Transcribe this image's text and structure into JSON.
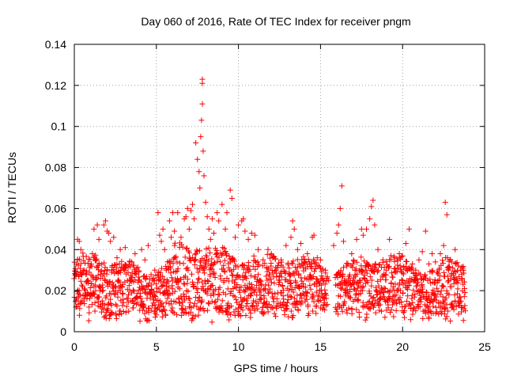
{
  "chart_data": {
    "type": "scatter",
    "title": "Day 060 of 2016, Rate Of TEC Index for receiver pngm",
    "xlabel": "GPS time / hours",
    "ylabel": "ROTI / TECUs",
    "xlim": [
      0,
      25
    ],
    "ylim": [
      0,
      0.14
    ],
    "x_ticks": [
      0,
      5,
      10,
      15,
      20,
      25
    ],
    "x_tick_labels": [
      "0",
      "5",
      "10",
      "15",
      "20",
      "25"
    ],
    "y_ticks": [
      0,
      0.02,
      0.04,
      0.06,
      0.08,
      0.1,
      0.12,
      0.14
    ],
    "y_tick_labels": [
      "0",
      "0.02",
      "0.04",
      "0.06",
      "0.08",
      "0.1",
      "0.12",
      "0.14"
    ],
    "grid": true,
    "marker": "+",
    "color": "#ff0000",
    "series": [
      {
        "name": "ROTI",
        "points": [
          [
            0.1,
            0.012
          ],
          [
            0.1,
            0.028
          ],
          [
            0.2,
            0.035
          ],
          [
            0.2,
            0.045
          ],
          [
            0.3,
            0.02
          ],
          [
            0.3,
            0.044
          ],
          [
            0.4,
            0.015
          ],
          [
            0.4,
            0.04
          ],
          [
            0.5,
            0.022
          ],
          [
            0.6,
            0.03
          ],
          [
            0.7,
            0.018
          ],
          [
            0.8,
            0.025
          ],
          [
            0.9,
            0.012
          ],
          [
            1.0,
            0.032
          ],
          [
            1.1,
            0.038
          ],
          [
            1.2,
            0.05
          ],
          [
            1.3,
            0.02
          ],
          [
            1.4,
            0.052
          ],
          [
            1.5,
            0.045
          ],
          [
            1.6,
            0.028
          ],
          [
            1.7,
            0.015
          ],
          [
            1.8,
            0.052
          ],
          [
            1.9,
            0.054
          ],
          [
            2.0,
            0.049
          ],
          [
            2.1,
            0.048
          ],
          [
            2.2,
            0.044
          ],
          [
            2.3,
            0.03
          ],
          [
            2.4,
            0.046
          ],
          [
            2.5,
            0.02
          ],
          [
            2.6,
            0.036
          ],
          [
            2.7,
            0.025
          ],
          [
            2.8,
            0.04
          ],
          [
            2.9,
            0.022
          ],
          [
            3.0,
            0.032
          ],
          [
            3.1,
            0.041
          ],
          [
            3.3,
            0.018
          ],
          [
            3.5,
            0.034
          ],
          [
            3.7,
            0.038
          ],
          [
            3.9,
            0.025
          ],
          [
            4.1,
            0.04
          ],
          [
            4.3,
            0.035
          ],
          [
            4.5,
            0.042
          ],
          [
            4.7,
            0.02
          ],
          [
            4.9,
            0.03
          ],
          [
            5.1,
            0.058
          ],
          [
            5.2,
            0.047
          ],
          [
            5.3,
            0.044
          ],
          [
            5.4,
            0.05
          ],
          [
            5.5,
            0.04
          ],
          [
            5.6,
            0.03
          ],
          [
            5.8,
            0.054
          ],
          [
            5.9,
            0.046
          ],
          [
            6.0,
            0.058
          ],
          [
            6.1,
            0.049
          ],
          [
            6.3,
            0.058
          ],
          [
            6.5,
            0.046
          ],
          [
            6.7,
            0.055
          ],
          [
            6.8,
            0.056
          ],
          [
            6.9,
            0.06
          ],
          [
            7.0,
            0.05
          ],
          [
            7.1,
            0.059
          ],
          [
            7.2,
            0.062
          ],
          [
            7.3,
            0.055
          ],
          [
            7.4,
            0.092
          ],
          [
            7.5,
            0.084
          ],
          [
            7.6,
            0.078
          ],
          [
            7.65,
            0.07
          ],
          [
            7.7,
            0.095
          ],
          [
            7.75,
            0.103
          ],
          [
            7.8,
            0.111
          ],
          [
            7.8,
            0.121
          ],
          [
            7.8,
            0.123
          ],
          [
            7.85,
            0.088
          ],
          [
            7.9,
            0.076
          ],
          [
            8.0,
            0.063
          ],
          [
            8.1,
            0.056
          ],
          [
            8.2,
            0.05
          ],
          [
            8.3,
            0.045
          ],
          [
            8.4,
            0.055
          ],
          [
            8.5,
            0.048
          ],
          [
            8.7,
            0.058
          ],
          [
            8.8,
            0.054
          ],
          [
            9.0,
            0.062
          ],
          [
            9.2,
            0.05
          ],
          [
            9.3,
            0.058
          ],
          [
            9.5,
            0.069
          ],
          [
            9.6,
            0.065
          ],
          [
            9.8,
            0.046
          ],
          [
            10.0,
            0.052
          ],
          [
            10.2,
            0.054
          ],
          [
            10.3,
            0.055
          ],
          [
            10.4,
            0.049
          ],
          [
            10.6,
            0.045
          ],
          [
            10.8,
            0.048
          ],
          [
            11.0,
            0.047
          ],
          [
            11.2,
            0.04
          ],
          [
            11.5,
            0.035
          ],
          [
            11.8,
            0.04
          ],
          [
            12.0,
            0.038
          ],
          [
            12.3,
            0.03
          ],
          [
            12.6,
            0.035
          ],
          [
            12.9,
            0.042
          ],
          [
            13.2,
            0.046
          ],
          [
            13.3,
            0.054
          ],
          [
            13.4,
            0.05
          ],
          [
            13.6,
            0.04
          ],
          [
            13.8,
            0.043
          ],
          [
            14.0,
            0.034
          ],
          [
            14.2,
            0.038
          ],
          [
            14.5,
            0.046
          ],
          [
            14.6,
            0.047
          ],
          [
            14.8,
            0.036
          ],
          [
            15.0,
            0.035
          ],
          [
            15.3,
            0.03
          ],
          [
            15.5,
            0.025
          ],
          [
            15.8,
            0.042
          ],
          [
            16.0,
            0.048
          ],
          [
            16.1,
            0.052
          ],
          [
            16.2,
            0.06
          ],
          [
            16.3,
            0.071
          ],
          [
            16.4,
            0.044
          ],
          [
            16.6,
            0.032
          ],
          [
            16.9,
            0.038
          ],
          [
            17.2,
            0.045
          ],
          [
            17.5,
            0.05
          ],
          [
            17.6,
            0.047
          ],
          [
            17.8,
            0.05
          ],
          [
            18.0,
            0.055
          ],
          [
            18.1,
            0.061
          ],
          [
            18.2,
            0.064
          ],
          [
            18.3,
            0.052
          ],
          [
            18.5,
            0.04
          ],
          [
            18.8,
            0.035
          ],
          [
            19.0,
            0.03
          ],
          [
            19.2,
            0.045
          ],
          [
            19.5,
            0.036
          ],
          [
            19.8,
            0.038
          ],
          [
            20.0,
            0.037
          ],
          [
            20.2,
            0.043
          ],
          [
            20.4,
            0.05
          ],
          [
            20.6,
            0.033
          ],
          [
            20.8,
            0.03
          ],
          [
            21.0,
            0.035
          ],
          [
            21.2,
            0.039
          ],
          [
            21.4,
            0.049
          ],
          [
            21.6,
            0.033
          ],
          [
            21.8,
            0.038
          ],
          [
            22.0,
            0.034
          ],
          [
            22.3,
            0.038
          ],
          [
            22.5,
            0.042
          ],
          [
            22.6,
            0.063
          ],
          [
            22.7,
            0.057
          ],
          [
            22.8,
            0.03
          ],
          [
            23.0,
            0.034
          ],
          [
            23.2,
            0.04
          ],
          [
            23.4,
            0.032
          ],
          [
            23.6,
            0.028
          ],
          [
            23.7,
            0.03
          ]
        ]
      }
    ],
    "dense_band": {
      "note": "Dense cluster of + markers covering the band between lower and upper ROTI levels over 0-23.8 h",
      "x_start": 0.0,
      "x_end": 23.8,
      "x_step": 0.04,
      "lower_min": 0.004,
      "lower_max": 0.012,
      "upper_base": 0.028,
      "upper_amp": 0.012,
      "gap_hours": [
        [
          15.4,
          15.9
        ]
      ]
    }
  }
}
